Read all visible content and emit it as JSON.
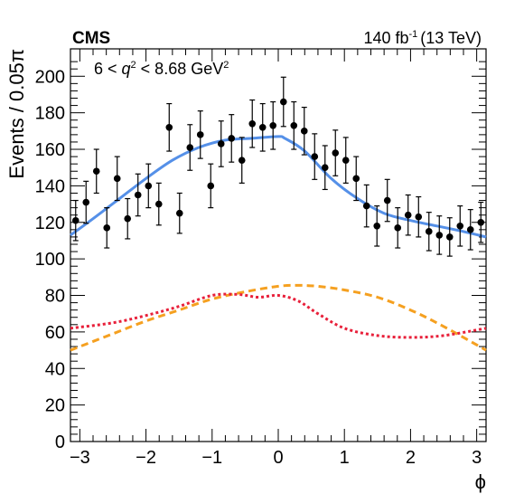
{
  "header": {
    "experiment": "CMS",
    "lumi_value": "140 fb",
    "lumi_exp": "-1",
    "lumi_energy": "(13 TeV)"
  },
  "annotation": {
    "pre": "6 < ",
    "var": "q",
    "var_exp": "2",
    "post": " < 8.68 GeV",
    "unit_exp": "2"
  },
  "chart_data": {
    "type": "scatter",
    "xlabel": "ϕ",
    "ylabel": "Events / 0.05π",
    "xlim": [
      -3.1416,
      3.1416
    ],
    "ylim": [
      0,
      215
    ],
    "x_ticks": [
      -3,
      -2,
      -1,
      0,
      1,
      2,
      3
    ],
    "x_tick_labels": [
      "−3",
      "−2",
      "−1",
      "0",
      "1",
      "2",
      "3"
    ],
    "y_ticks": [
      0,
      20,
      40,
      60,
      80,
      100,
      120,
      140,
      160,
      180,
      200
    ],
    "y_tick_labels": [
      "0",
      "20",
      "40",
      "60",
      "80",
      "100",
      "120",
      "140",
      "160",
      "180",
      "200"
    ],
    "grid": false,
    "legend": "none",
    "series": [
      {
        "kind": "data-points",
        "color": "#000000",
        "x": [
          -3.063,
          -2.906,
          -2.749,
          -2.592,
          -2.435,
          -2.278,
          -2.121,
          -1.963,
          -1.806,
          -1.649,
          -1.492,
          -1.335,
          -1.178,
          -1.021,
          -0.864,
          -0.707,
          -0.55,
          -0.393,
          -0.236,
          -0.079,
          0.079,
          0.236,
          0.393,
          0.55,
          0.707,
          0.864,
          1.021,
          1.178,
          1.335,
          1.492,
          1.649,
          1.806,
          1.963,
          2.121,
          2.278,
          2.435,
          2.592,
          2.749,
          2.906,
          3.063
        ],
        "y": [
          121,
          131,
          148,
          117,
          144,
          122,
          135,
          140,
          130,
          172,
          125,
          161,
          168,
          140,
          163,
          166,
          154,
          174,
          172,
          173,
          186,
          173,
          170,
          156,
          150,
          158,
          154,
          144,
          129,
          118,
          132,
          117,
          124,
          123,
          115,
          113,
          112,
          118,
          116,
          120
        ],
        "yerr": [
          11,
          11.5,
          12,
          11,
          12,
          11,
          11.5,
          12,
          11.5,
          13,
          11,
          12.5,
          13,
          12,
          12.5,
          13,
          12.5,
          13,
          13,
          13,
          13.5,
          13,
          13,
          12.5,
          12,
          12.5,
          12.5,
          12,
          11.5,
          11,
          11.5,
          11,
          11,
          11,
          10.5,
          10.5,
          10.5,
          11,
          11,
          11
        ]
      },
      {
        "kind": "total-fit",
        "color": "#5590e8",
        "style": "solid",
        "x": [
          -3.1416,
          -2.8,
          -2.4,
          -2.0,
          -1.6,
          -1.2,
          -0.8,
          -0.4,
          0.0,
          0.1,
          0.4,
          0.8,
          1.2,
          1.6,
          2.0,
          2.4,
          2.8,
          3.1416
        ],
        "y": [
          113,
          122,
          133,
          144,
          154,
          161,
          165,
          166,
          167,
          166,
          159,
          144,
          133,
          125,
          121,
          118,
          115,
          112
        ]
      },
      {
        "kind": "component-1",
        "color": "#f5a020",
        "style": "dashed",
        "x": [
          -3.1416,
          -2.5,
          -2.0,
          -1.5,
          -1.0,
          -0.5,
          0.0,
          0.3,
          0.6,
          1.0,
          1.5,
          2.0,
          2.5,
          3.1416
        ],
        "y": [
          50,
          59,
          66,
          72,
          78,
          82,
          85,
          85.5,
          85,
          83,
          79,
          72,
          63,
          50
        ]
      },
      {
        "kind": "component-2",
        "color": "#e8203a",
        "style": "dotted",
        "x": [
          -3.1416,
          -2.5,
          -2.0,
          -1.5,
          -1.0,
          -0.6,
          -0.3,
          0.0,
          0.3,
          0.6,
          1.0,
          1.5,
          2.0,
          2.5,
          3.1416
        ],
        "y": [
          62,
          65,
          69,
          74,
          80,
          80.5,
          79,
          80,
          77,
          70,
          62,
          58,
          57,
          58,
          62
        ]
      }
    ]
  }
}
